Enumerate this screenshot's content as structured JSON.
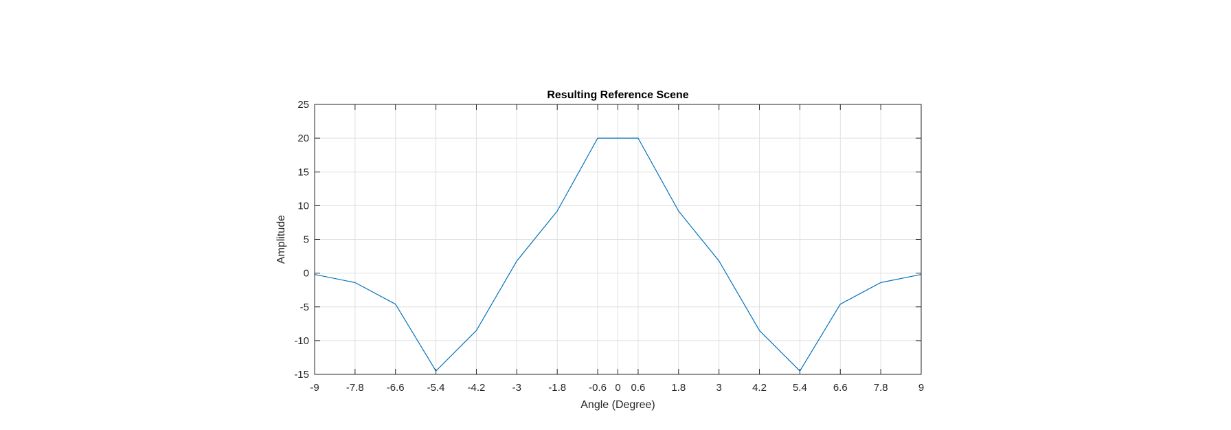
{
  "chart_data": {
    "type": "line",
    "title": "Resulting Reference Scene",
    "xlabel": "Angle (Degree)",
    "ylabel": "Amplitude",
    "xlim": [
      -9,
      9
    ],
    "ylim": [
      -15,
      25
    ],
    "xticks": [
      -9,
      -7.8,
      -6.6,
      -5.4,
      -4.2,
      -3,
      -1.8,
      -0.6,
      0,
      0.6,
      1.8,
      3,
      4.2,
      5.4,
      6.6,
      7.8,
      9
    ],
    "xtick_labels": [
      "-9",
      "-7.8",
      "-6.6",
      "-5.4",
      "-4.2",
      "-3",
      "-1.8",
      "-0.6",
      "0",
      "0.6",
      "1.8",
      "3",
      "4.2",
      "5.4",
      "6.6",
      "7.8",
      "9"
    ],
    "yticks": [
      -15,
      -10,
      -5,
      0,
      5,
      10,
      15,
      20,
      25
    ],
    "ytick_labels": [
      "-15",
      "-10",
      "-5",
      "0",
      "5",
      "10",
      "15",
      "20",
      "25"
    ],
    "grid": true,
    "series": [
      {
        "color": "#0072bd",
        "x": [
          -9,
          -7.8,
          -6.6,
          -5.4,
          -4.2,
          -3,
          -1.8,
          -0.6,
          0.6,
          1.8,
          3,
          4.2,
          5.4,
          6.6,
          7.8,
          9
        ],
        "y": [
          -0.2,
          -1.4,
          -4.6,
          -14.5,
          -8.5,
          1.8,
          9.2,
          20,
          20,
          9.2,
          1.8,
          -8.5,
          -14.5,
          -4.6,
          -1.4,
          -0.2
        ]
      }
    ]
  }
}
